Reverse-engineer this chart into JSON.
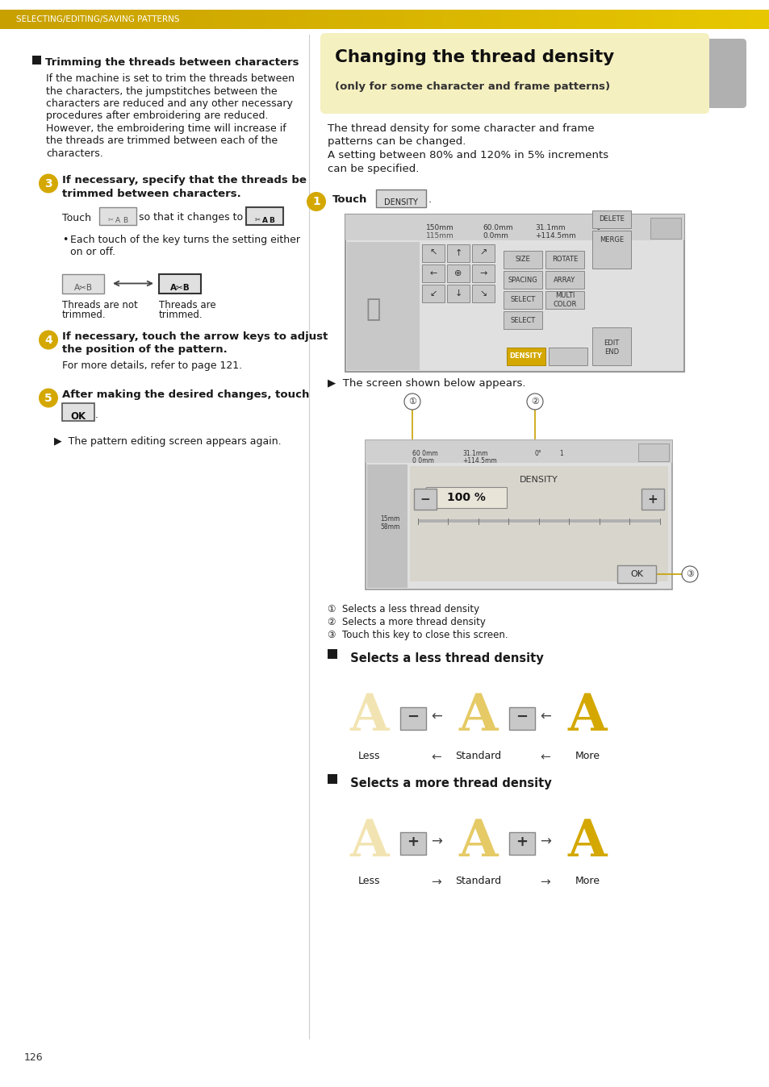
{
  "page_bg": "#ffffff",
  "header_bg_left": "#C8A000",
  "header_bg_right": "#E8C840",
  "header_text": "SELECTING/EDITING/SAVING PATTERNS",
  "header_text_color": "#ffffff",
  "page_number": "126",
  "right_title": "Changing the thread density",
  "right_title_bg": "#f5f0c0",
  "right_subtitle": "(only for some character and frame patterns)",
  "right_body1_lines": [
    "The thread density for some character and frame",
    "patterns can be changed.",
    "A setting between 80% and 120% in 5% increments",
    "can be specified."
  ],
  "callout1_text": "Selects a less thread density",
  "callout2_text": "Selects a more thread density",
  "callout3_text": "Touch this key to close this screen.",
  "less_density_title": "Selects a less thread density",
  "less_labels": [
    "Less",
    "Standard",
    "More"
  ],
  "more_density_title": "Selects a more thread density",
  "more_labels": [
    "Less",
    "Standard",
    "More"
  ],
  "left_bullet_title": "Trimming the threads between characters",
  "left_body_lines": [
    "If the machine is set to trim the threads between",
    "the characters, the jumpstitches between the",
    "characters are reduced and any other necessary",
    "procedures after embroidering are reduced.",
    "However, the embroidering time will increase if",
    "the threads are trimmed between each of the",
    "characters."
  ],
  "step3_title_lines": [
    "If necessary, specify that the threads be",
    "trimmed between characters."
  ],
  "step3_label1_lines": [
    "Threads are not",
    "trimmed."
  ],
  "step3_label2_lines": [
    "Threads are",
    "trimmed."
  ],
  "step4_title_lines": [
    "If necessary, touch the arrow keys to adjust",
    "the position of the pattern."
  ],
  "step4_body": "For more details, refer to page 121.",
  "step5_title": "After making the desired changes, touch",
  "step5_body": "The pattern editing screen appears again.",
  "gold": "#D4A800",
  "gold_pale": "#f5f0c0",
  "gray_med": "#888888",
  "gray_light": "#cccccc",
  "dark_text": "#1a1a1a",
  "btn_bg": "#d8d8d8",
  "btn_border": "#888888",
  "screen_bg": "#e8e8e8",
  "screen_inner": "#f0ece0"
}
